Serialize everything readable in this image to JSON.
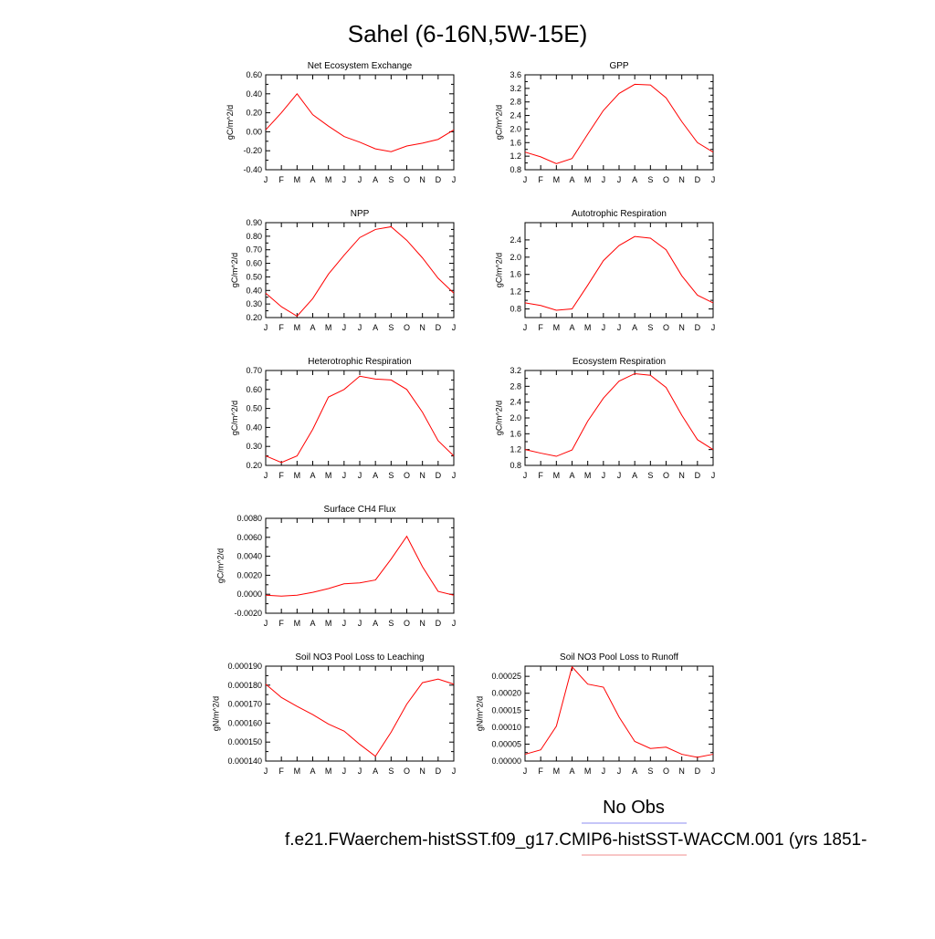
{
  "page": {
    "title": "Sahel (6-16N,5W-15E)",
    "legend": {
      "label": "No Obs",
      "obs_color": "#8c8cf0",
      "model_color": "#f08c8c"
    },
    "footer": "f.e21.FWaerchem-histSST.f09_g17.CMIP6-histSST-WACCM.001 (yrs 1851-"
  },
  "chart_data": [
    {
      "type": "line",
      "title": "Net Ecosystem Exchange",
      "ylabel": "gC/m^2/d",
      "categories": [
        "J",
        "F",
        "M",
        "A",
        "M",
        "J",
        "J",
        "A",
        "S",
        "O",
        "N",
        "D",
        "J"
      ],
      "ylim": [
        -0.4,
        0.6
      ],
      "yticks": [
        -0.4,
        -0.2,
        0.0,
        0.2,
        0.4,
        0.6
      ],
      "ytick_labels": [
        "-0.40",
        "-0.20",
        "0.00",
        "0.20",
        "0.40",
        "0.60"
      ],
      "series": [
        {
          "color": "#ff0000",
          "values": [
            0.02,
            0.2,
            0.4,
            0.18,
            0.06,
            -0.05,
            -0.11,
            -0.18,
            -0.21,
            -0.15,
            -0.12,
            -0.08,
            0.02
          ]
        }
      ]
    },
    {
      "type": "line",
      "title": "GPP",
      "ylabel": "gC/m^2/d",
      "categories": [
        "J",
        "F",
        "M",
        "A",
        "M",
        "J",
        "J",
        "A",
        "S",
        "O",
        "N",
        "D",
        "J"
      ],
      "ylim": [
        0.8,
        3.6
      ],
      "yticks": [
        0.8,
        1.2,
        1.6,
        2.0,
        2.4,
        2.8,
        3.2,
        3.6
      ],
      "ytick_labels": [
        "0.8",
        "1.2",
        "1.6",
        "2.0",
        "2.4",
        "2.8",
        "3.2",
        "3.6"
      ],
      "series": [
        {
          "color": "#ff0000",
          "values": [
            1.32,
            1.18,
            0.98,
            1.13,
            1.85,
            2.55,
            3.05,
            3.32,
            3.3,
            2.92,
            2.22,
            1.6,
            1.32
          ]
        }
      ]
    },
    {
      "type": "line",
      "title": "NPP",
      "ylabel": "gC/m^2/d",
      "categories": [
        "J",
        "F",
        "M",
        "A",
        "M",
        "J",
        "J",
        "A",
        "S",
        "O",
        "N",
        "D",
        "J"
      ],
      "ylim": [
        0.2,
        0.9
      ],
      "yticks": [
        0.2,
        0.3,
        0.4,
        0.5,
        0.6,
        0.7,
        0.8,
        0.9
      ],
      "ytick_labels": [
        "0.20",
        "0.30",
        "0.40",
        "0.50",
        "0.60",
        "0.70",
        "0.80",
        "0.90"
      ],
      "series": [
        {
          "color": "#ff0000",
          "values": [
            0.38,
            0.28,
            0.21,
            0.34,
            0.52,
            0.66,
            0.79,
            0.85,
            0.87,
            0.77,
            0.64,
            0.49,
            0.38
          ]
        }
      ]
    },
    {
      "type": "line",
      "title": "Autotrophic Respiration",
      "ylabel": "gC/m^2/d",
      "categories": [
        "J",
        "F",
        "M",
        "A",
        "M",
        "J",
        "J",
        "A",
        "S",
        "O",
        "N",
        "D",
        "J"
      ],
      "ylim": [
        0.6,
        2.8
      ],
      "yticks": [
        0.8,
        1.2,
        1.6,
        2.0,
        2.4
      ],
      "ytick_labels": [
        "0.8",
        "1.2",
        "1.6",
        "2.0",
        "2.4"
      ],
      "series": [
        {
          "color": "#ff0000",
          "values": [
            0.94,
            0.88,
            0.77,
            0.8,
            1.35,
            1.92,
            2.27,
            2.48,
            2.44,
            2.17,
            1.57,
            1.12,
            0.94
          ]
        }
      ]
    },
    {
      "type": "line",
      "title": "Heterotrophic Respiration",
      "ylabel": "gC/m^2/d",
      "categories": [
        "J",
        "F",
        "M",
        "A",
        "M",
        "J",
        "J",
        "A",
        "S",
        "O",
        "N",
        "D",
        "J"
      ],
      "ylim": [
        0.2,
        0.7
      ],
      "yticks": [
        0.2,
        0.3,
        0.4,
        0.5,
        0.6,
        0.7
      ],
      "ytick_labels": [
        "0.20",
        "0.30",
        "0.40",
        "0.50",
        "0.60",
        "0.70"
      ],
      "series": [
        {
          "color": "#ff0000",
          "values": [
            0.25,
            0.215,
            0.25,
            0.39,
            0.56,
            0.6,
            0.67,
            0.655,
            0.65,
            0.6,
            0.48,
            0.33,
            0.25
          ]
        }
      ]
    },
    {
      "type": "line",
      "title": "Ecosystem Respiration",
      "ylabel": "gC/m^2/d",
      "categories": [
        "J",
        "F",
        "M",
        "A",
        "M",
        "J",
        "J",
        "A",
        "S",
        "O",
        "N",
        "D",
        "J"
      ],
      "ylim": [
        0.8,
        3.2
      ],
      "yticks": [
        0.8,
        1.2,
        1.6,
        2.0,
        2.4,
        2.8,
        3.2
      ],
      "ytick_labels": [
        "0.8",
        "1.2",
        "1.6",
        "2.0",
        "2.4",
        "2.8",
        "3.2"
      ],
      "series": [
        {
          "color": "#ff0000",
          "values": [
            1.2,
            1.11,
            1.03,
            1.19,
            1.92,
            2.5,
            2.93,
            3.12,
            3.08,
            2.77,
            2.07,
            1.45,
            1.2
          ]
        }
      ]
    },
    {
      "type": "line",
      "title": "Surface CH4 Flux",
      "ylabel": "gC/m^2/d",
      "categories": [
        "J",
        "F",
        "M",
        "A",
        "M",
        "J",
        "J",
        "A",
        "S",
        "O",
        "N",
        "D",
        "J"
      ],
      "ylim": [
        -0.002,
        0.008
      ],
      "yticks": [
        -0.002,
        0.0,
        0.002,
        0.004,
        0.006,
        0.008
      ],
      "ytick_labels": [
        "-0.0020",
        "0.0000",
        "0.0020",
        "0.0040",
        "0.0060",
        "0.0080"
      ],
      "series": [
        {
          "color": "#ff0000",
          "values": [
            -0.0001,
            -0.0002,
            -0.0001,
            0.0002,
            0.0006,
            0.0011,
            0.0012,
            0.0015,
            0.0037,
            0.0061,
            0.0029,
            0.0003,
            -0.0001
          ]
        }
      ]
    },
    {
      "type": "line",
      "title": "Soil NO3 Pool Loss to Leaching",
      "ylabel": "gN/m^2/d",
      "categories": [
        "J",
        "F",
        "M",
        "A",
        "M",
        "J",
        "J",
        "A",
        "S",
        "O",
        "N",
        "D",
        "J"
      ],
      "ylim": [
        0.00014,
        0.00019
      ],
      "yticks": [
        0.00014,
        0.00015,
        0.00016,
        0.00017,
        0.00018,
        0.00019
      ],
      "ytick_labels": [
        "0.000140",
        "0.000150",
        "0.000160",
        "0.000170",
        "0.000180",
        "0.000190"
      ],
      "series": [
        {
          "color": "#ff0000",
          "values": [
            0.0001805,
            0.0001735,
            0.0001688,
            0.0001645,
            0.0001595,
            0.0001558,
            0.0001488,
            0.0001425,
            0.0001552,
            0.00017,
            0.0001813,
            0.0001832,
            0.0001805
          ]
        }
      ]
    },
    {
      "type": "line",
      "title": "Soil NO3 Pool Loss to Runoff",
      "ylabel": "gN/m^2/d",
      "categories": [
        "J",
        "F",
        "M",
        "A",
        "M",
        "J",
        "J",
        "A",
        "S",
        "O",
        "N",
        "D",
        "J"
      ],
      "ylim": [
        0.0,
        0.00028
      ],
      "yticks": [
        0.0,
        5e-05,
        0.0001,
        0.00015,
        0.0002,
        0.00025
      ],
      "ytick_labels": [
        "0.00000",
        "0.00005",
        "0.00010",
        "0.00015",
        "0.00020",
        "0.00025"
      ],
      "series": [
        {
          "color": "#ff0000",
          "values": [
            2e-05,
            3.3e-05,
            0.000103,
            0.000278,
            0.000227,
            0.000218,
            0.00013,
            5.8e-05,
            3.7e-05,
            4.1e-05,
            2e-05,
            1.1e-05,
            2e-05
          ]
        }
      ]
    }
  ]
}
